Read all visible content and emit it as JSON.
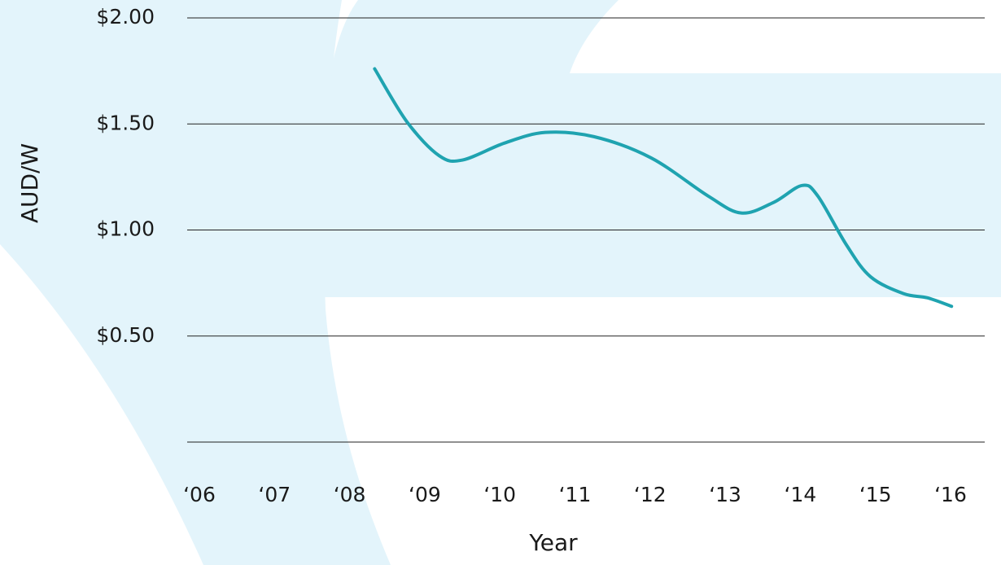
{
  "chart_data": {
    "type": "line",
    "x_label": "Year",
    "y_label": "AUD/W",
    "x": [
      8.42,
      8.85,
      9.28,
      9.59,
      10.15,
      10.69,
      11.34,
      12.1,
      12.86,
      13.3,
      13.73,
      14.11,
      14.32,
      14.7,
      15.02,
      15.46,
      15.78,
      16.1
    ],
    "series": [
      {
        "color": "#1fa3b0",
        "values": [
          1.76,
          1.51,
          1.35,
          1.33,
          1.41,
          1.46,
          1.44,
          1.34,
          1.16,
          1.08,
          1.13,
          1.21,
          1.16,
          0.93,
          0.78,
          0.7,
          0.68,
          0.64
        ]
      }
    ],
    "xlim": [
      6,
      16
    ],
    "ylim": [
      0,
      2
    ],
    "xticks": [
      {
        "value": 6,
        "label": "‘06"
      },
      {
        "value": 7,
        "label": "‘07"
      },
      {
        "value": 8,
        "label": "‘08"
      },
      {
        "value": 9,
        "label": "‘09"
      },
      {
        "value": 10,
        "label": "‘10"
      },
      {
        "value": 11,
        "label": "‘11"
      },
      {
        "value": 12,
        "label": "‘12"
      },
      {
        "value": 13,
        "label": "‘13"
      },
      {
        "value": 14,
        "label": "‘14"
      },
      {
        "value": 15,
        "label": "‘15"
      },
      {
        "value": 16,
        "label": "‘16"
      }
    ],
    "yticks": [
      {
        "value": 0.5,
        "label": "$0.50"
      },
      {
        "value": 1,
        "label": "$1.00"
      },
      {
        "value": 1.5,
        "label": "$1.50"
      },
      {
        "value": 2,
        "label": "$2.00"
      }
    ],
    "grid": true
  }
}
